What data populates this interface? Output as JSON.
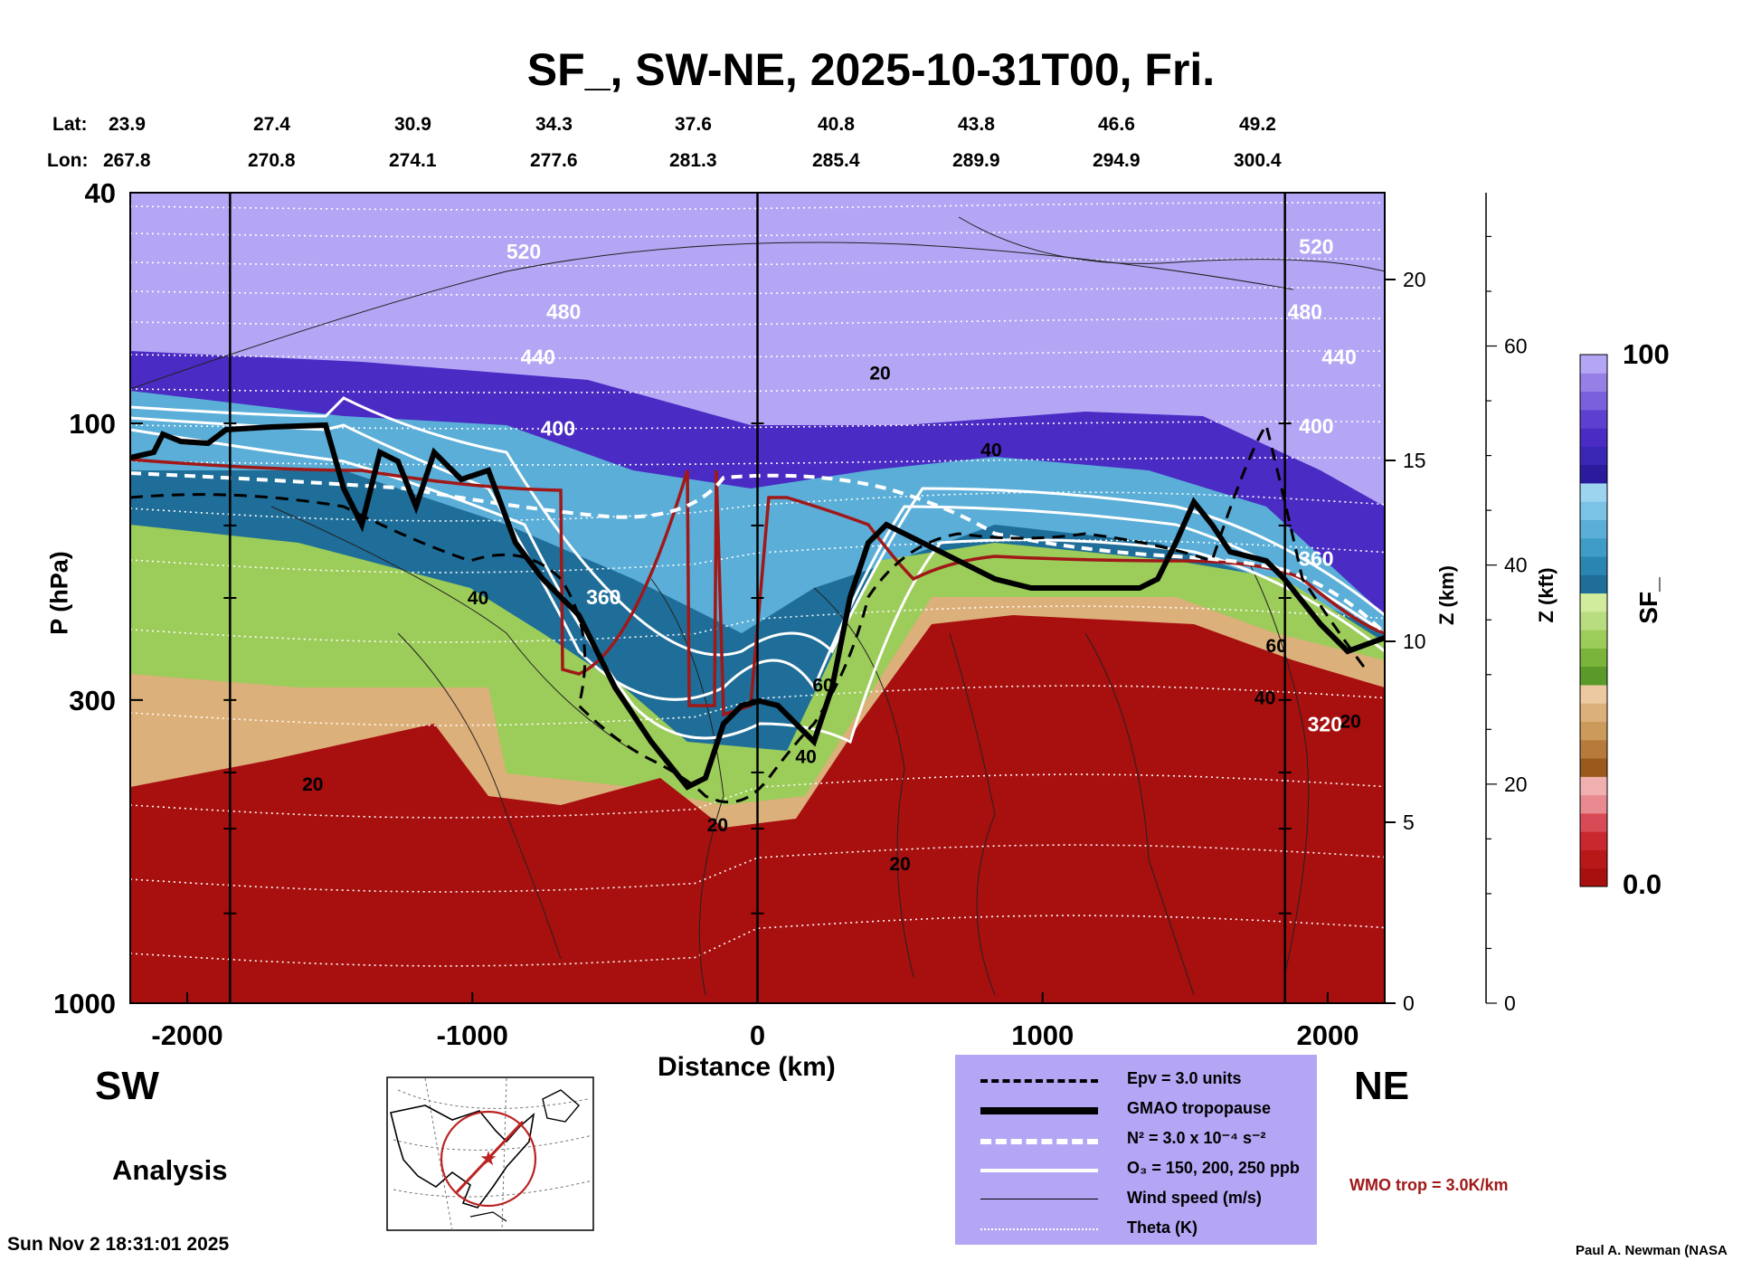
{
  "title": "SF_, SW-NE, 2025-10-31T00, Fri.",
  "lat_label": "Lat:",
  "lon_label": "Lon:",
  "lats": [
    "23.9",
    "27.4",
    "30.9",
    "34.3",
    "37.6",
    "40.8",
    "43.8",
    "46.6",
    "49.2"
  ],
  "lons": [
    "267.8",
    "270.8",
    "274.1",
    "277.6",
    "281.3",
    "285.4",
    "289.9",
    "294.9",
    "300.4"
  ],
  "sw_label": "SW",
  "ne_label": "NE",
  "analysis_label": "Analysis",
  "timestamp": "Sun Nov  2 18:31:01 2025",
  "credit": "Paul A. Newman (NASA",
  "wmo_text": "WMO trop = 3.0K/km",
  "legend": {
    "items": [
      {
        "label": "Epv = 3.0 units"
      },
      {
        "label": "GMAO tropopause"
      },
      {
        "label": "N² = 3.0 x 10⁻⁴ s⁻²"
      },
      {
        "label": "O₃ = 150, 200, 250 ppb"
      },
      {
        "label": "Wind speed (m/s)"
      },
      {
        "label": "Theta (K)"
      }
    ]
  },
  "colors": {
    "strat_purple": "#b4a6f5",
    "deep_purple": "#4a2bc4",
    "blue": "#5aaed8",
    "dark_teal": "#1e6e99",
    "green": "#9ccc5a",
    "tan": "#dcb07a",
    "red": "#a80f0f",
    "wmo_red": "#a01818"
  },
  "chart_data": {
    "type": "heatmap",
    "title": "SF_, SW-NE, 2025-10-31T00, Fri.",
    "xlabel": "Distance (km)",
    "ylabel": "P (hPa)",
    "ylabel_right_km": "Z (km)",
    "ylabel_right_kft": "Z (kft)",
    "colorbar_label": "SF_",
    "xlim": [
      -2200,
      2200
    ],
    "ylim": [
      1000,
      40
    ],
    "x_ticks": [
      -2000,
      -1000,
      0,
      1000,
      2000
    ],
    "x_tick_labels": [
      "-2000",
      "-1000",
      "0",
      "1000",
      "2000"
    ],
    "p_ticks": [
      40,
      100,
      300,
      1000
    ],
    "p_tick_labels": [
      "40",
      "100",
      "300",
      "1000"
    ],
    "z_km_ticks": [
      0,
      5,
      10,
      15,
      20
    ],
    "z_km_labels": [
      "0",
      "5",
      "10",
      "15",
      "20"
    ],
    "z_kft_ticks": [
      0,
      20,
      40,
      60
    ],
    "z_kft_labels": [
      "0",
      "20",
      "40",
      "60"
    ],
    "colorbar_range": [
      0.0,
      100
    ],
    "colorbar_labels": [
      "0.0",
      "100"
    ],
    "theta_contour_labels": [
      {
        "text": "520",
        "x": -820,
        "p": 52
      },
      {
        "text": "480",
        "x": -680,
        "p": 66
      },
      {
        "text": "440",
        "x": -770,
        "p": 79
      },
      {
        "text": "400",
        "x": -700,
        "p": 105
      },
      {
        "text": "360",
        "x": -540,
        "p": 205
      },
      {
        "text": "520",
        "x": 1960,
        "p": 51
      },
      {
        "text": "480",
        "x": 1920,
        "p": 66
      },
      {
        "text": "440",
        "x": 2040,
        "p": 79
      },
      {
        "text": "400",
        "x": 1960,
        "p": 104
      },
      {
        "text": "360",
        "x": 1960,
        "p": 176
      },
      {
        "text": "320",
        "x": 1990,
        "p": 340
      }
    ],
    "wind_contour_labels": [
      {
        "text": "20",
        "x": 430,
        "p": 84
      },
      {
        "text": "40",
        "x": 820,
        "p": 114
      },
      {
        "text": "40",
        "x": -980,
        "p": 205
      },
      {
        "text": "20",
        "x": -1560,
        "p": 430
      },
      {
        "text": "20",
        "x": -140,
        "p": 505
      },
      {
        "text": "60",
        "x": 230,
        "p": 290
      },
      {
        "text": "40",
        "x": 170,
        "p": 385
      },
      {
        "text": "20",
        "x": 500,
        "p": 590
      },
      {
        "text": "60",
        "x": 1820,
        "p": 248
      },
      {
        "text": "40",
        "x": 1780,
        "p": 305
      },
      {
        "text": "20",
        "x": 2080,
        "p": 335
      }
    ]
  }
}
